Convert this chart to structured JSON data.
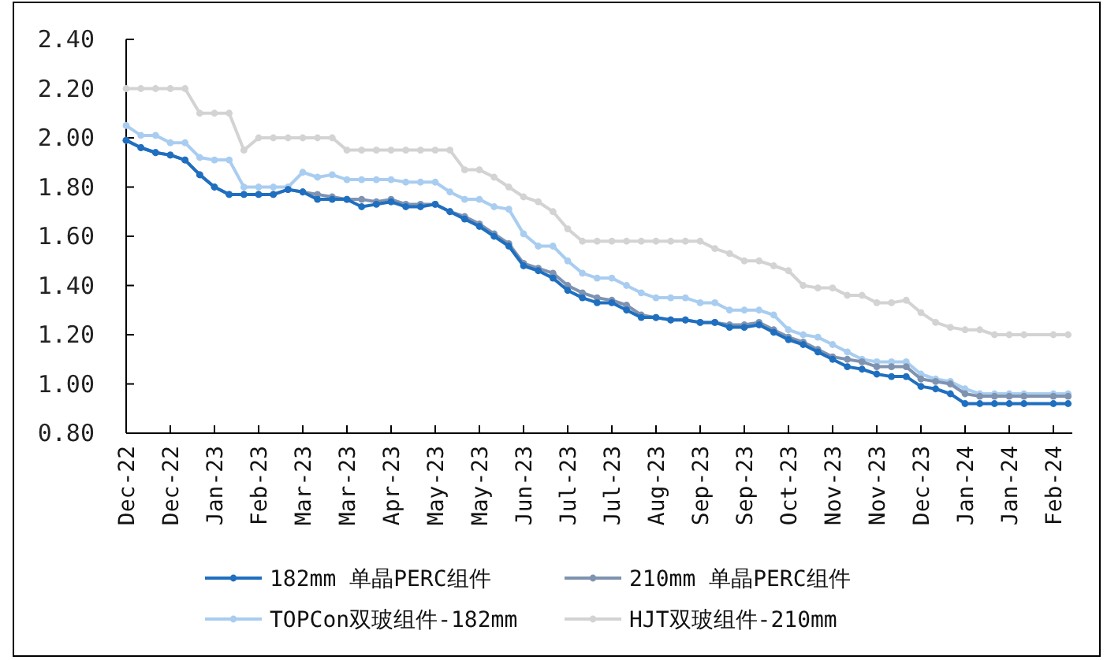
{
  "chart_data": {
    "type": "line",
    "marker": "circle",
    "legend": "bottom",
    "x": [
      "2022-12-07",
      "2022-12-14",
      "2022-12-21",
      "2022-12-28",
      "2023-01-04",
      "2023-01-11",
      "2023-01-18",
      "2023-01-25",
      "2023-02-01",
      "2023-02-08",
      "2023-02-15",
      "2023-02-22",
      "2023-03-01",
      "2023-03-08",
      "2023-03-15",
      "2023-03-22",
      "2023-03-29",
      "2023-04-05",
      "2023-04-12",
      "2023-04-19",
      "2023-04-26",
      "2023-05-03",
      "2023-05-10",
      "2023-05-17",
      "2023-05-24",
      "2023-05-31",
      "2023-06-07",
      "2023-06-14",
      "2023-06-21",
      "2023-06-28",
      "2023-07-05",
      "2023-07-12",
      "2023-07-19",
      "2023-07-26",
      "2023-08-02",
      "2023-08-09",
      "2023-08-16",
      "2023-08-23",
      "2023-08-30",
      "2023-09-06",
      "2023-09-13",
      "2023-09-20",
      "2023-09-27",
      "2023-10-04",
      "2023-10-11",
      "2023-10-18",
      "2023-10-25",
      "2023-11-01",
      "2023-11-08",
      "2023-11-15",
      "2023-11-22",
      "2023-11-29",
      "2023-12-06",
      "2023-12-13",
      "2023-12-20",
      "2023-12-27",
      "2024-01-03",
      "2024-01-10",
      "2024-01-17",
      "2024-01-24",
      "2024-01-31",
      "2024-02-07",
      "2024-02-21",
      "2024-02-28"
    ],
    "xlim": [
      "2022-12-07",
      "2024-03-01"
    ],
    "xticks": [
      {
        "value": "2022-12-07",
        "label": "Dec-22"
      },
      {
        "value": "2022-12-28",
        "label": "Dec-22"
      },
      {
        "value": "2023-01-18",
        "label": "Jan-23"
      },
      {
        "value": "2023-02-08",
        "label": "Feb-23"
      },
      {
        "value": "2023-03-01",
        "label": "Mar-23"
      },
      {
        "value": "2023-03-22",
        "label": "Mar-23"
      },
      {
        "value": "2023-04-12",
        "label": "Apr-23"
      },
      {
        "value": "2023-05-03",
        "label": "May-23"
      },
      {
        "value": "2023-05-24",
        "label": "May-23"
      },
      {
        "value": "2023-06-14",
        "label": "Jun-23"
      },
      {
        "value": "2023-07-05",
        "label": "Jul-23"
      },
      {
        "value": "2023-07-26",
        "label": "Jul-23"
      },
      {
        "value": "2023-08-16",
        "label": "Aug-23"
      },
      {
        "value": "2023-09-06",
        "label": "Sep-23"
      },
      {
        "value": "2023-09-27",
        "label": "Sep-23"
      },
      {
        "value": "2023-10-18",
        "label": "Oct-23"
      },
      {
        "value": "2023-11-08",
        "label": "Nov-23"
      },
      {
        "value": "2023-11-29",
        "label": "Nov-23"
      },
      {
        "value": "2023-12-20",
        "label": "Dec-23"
      },
      {
        "value": "2024-01-10",
        "label": "Jan-24"
      },
      {
        "value": "2024-01-31",
        "label": "Jan-24"
      },
      {
        "value": "2024-02-21",
        "label": "Feb-24"
      }
    ],
    "ylim": [
      0.8,
      2.4
    ],
    "yticks": [
      {
        "value": 0.8,
        "label": "0.80"
      },
      {
        "value": 1.0,
        "label": "1.00"
      },
      {
        "value": 1.2,
        "label": "1.20"
      },
      {
        "value": 1.4,
        "label": "1.40"
      },
      {
        "value": 1.6,
        "label": "1.60"
      },
      {
        "value": 1.8,
        "label": "1.80"
      },
      {
        "value": 2.0,
        "label": "2.00"
      },
      {
        "value": 2.2,
        "label": "2.20"
      },
      {
        "value": 2.4,
        "label": "2.40"
      }
    ],
    "series": [
      {
        "name": "182mm 单晶PERC组件",
        "color": "#1f6fc0",
        "values": [
          1.99,
          1.96,
          1.94,
          1.93,
          1.91,
          1.85,
          1.8,
          1.77,
          1.77,
          1.77,
          1.77,
          1.79,
          1.78,
          1.75,
          1.75,
          1.75,
          1.72,
          1.73,
          1.74,
          1.72,
          1.72,
          1.73,
          1.7,
          1.67,
          1.64,
          1.6,
          1.56,
          1.48,
          1.46,
          1.43,
          1.38,
          1.35,
          1.33,
          1.33,
          1.3,
          1.27,
          1.27,
          1.26,
          1.26,
          1.25,
          1.25,
          1.23,
          1.23,
          1.24,
          1.21,
          1.18,
          1.16,
          1.13,
          1.1,
          1.07,
          1.06,
          1.04,
          1.03,
          1.03,
          0.99,
          0.98,
          0.96,
          0.92,
          0.92,
          0.92,
          0.92,
          0.92,
          0.92,
          0.92
        ]
      },
      {
        "name": "210mm 单晶PERC组件",
        "color": "#7f93b0",
        "values": [
          1.99,
          1.96,
          1.94,
          1.93,
          1.91,
          1.85,
          1.8,
          1.77,
          1.77,
          1.77,
          1.77,
          1.79,
          1.78,
          1.77,
          1.76,
          1.75,
          1.75,
          1.74,
          1.75,
          1.73,
          1.73,
          1.73,
          1.7,
          1.68,
          1.65,
          1.61,
          1.57,
          1.49,
          1.47,
          1.45,
          1.4,
          1.37,
          1.35,
          1.34,
          1.32,
          1.28,
          1.27,
          1.26,
          1.26,
          1.25,
          1.25,
          1.24,
          1.24,
          1.25,
          1.22,
          1.19,
          1.17,
          1.14,
          1.11,
          1.1,
          1.09,
          1.07,
          1.07,
          1.07,
          1.02,
          1.01,
          1.0,
          0.96,
          0.95,
          0.95,
          0.95,
          0.95,
          0.95,
          0.95
        ]
      },
      {
        "name": "TOPCon双玻组件-182mm",
        "color": "#a9cdf0",
        "values": [
          2.05,
          2.01,
          2.01,
          1.98,
          1.98,
          1.92,
          1.91,
          1.91,
          1.8,
          1.8,
          1.8,
          1.8,
          1.86,
          1.84,
          1.85,
          1.83,
          1.83,
          1.83,
          1.83,
          1.82,
          1.82,
          1.82,
          1.78,
          1.75,
          1.75,
          1.72,
          1.71,
          1.61,
          1.56,
          1.56,
          1.5,
          1.45,
          1.43,
          1.43,
          1.4,
          1.37,
          1.35,
          1.35,
          1.35,
          1.33,
          1.33,
          1.3,
          1.3,
          1.3,
          1.28,
          1.22,
          1.2,
          1.19,
          1.16,
          1.13,
          1.1,
          1.09,
          1.09,
          1.09,
          1.04,
          1.02,
          1.01,
          0.98,
          0.96,
          0.96,
          0.96,
          0.96,
          0.96,
          0.96
        ]
      },
      {
        "name": "HJT双玻组件-210mm",
        "color": "#d3d3d3",
        "values": [
          2.2,
          2.2,
          2.2,
          2.2,
          2.2,
          2.1,
          2.1,
          2.1,
          1.95,
          2.0,
          2.0,
          2.0,
          2.0,
          2.0,
          2.0,
          1.95,
          1.95,
          1.95,
          1.95,
          1.95,
          1.95,
          1.95,
          1.95,
          1.87,
          1.87,
          1.84,
          1.8,
          1.76,
          1.74,
          1.7,
          1.63,
          1.58,
          1.58,
          1.58,
          1.58,
          1.58,
          1.58,
          1.58,
          1.58,
          1.58,
          1.55,
          1.53,
          1.5,
          1.5,
          1.48,
          1.46,
          1.4,
          1.39,
          1.39,
          1.36,
          1.36,
          1.33,
          1.33,
          1.34,
          1.29,
          1.25,
          1.23,
          1.22,
          1.22,
          1.2,
          1.2,
          1.2,
          1.2,
          1.2
        ]
      }
    ]
  }
}
